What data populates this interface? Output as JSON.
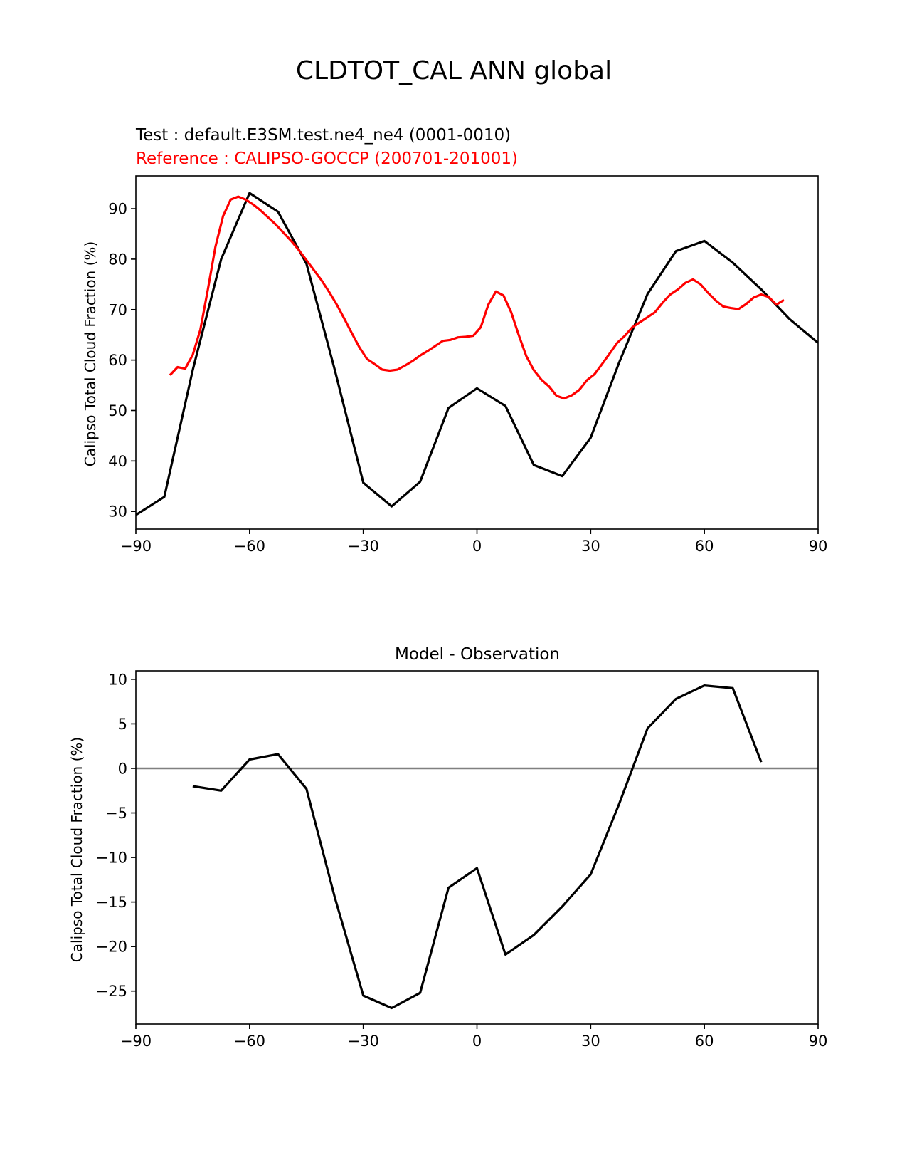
{
  "figure": {
    "title": "CLDTOT_CAL ANN global"
  },
  "chart_data": [
    {
      "type": "line",
      "subtitle_test": "Test : default.E3SM.test.ne4_ne4 (0001-0010)",
      "subtitle_reference": "Reference : CALIPSO-GOCCP (200701-201001)",
      "xlabel": "",
      "ylabel": "Calipso Total Cloud Fraction (%)",
      "xlim": [
        -90,
        90
      ],
      "ylim": [
        26.5,
        96.5
      ],
      "xticks": [
        -90,
        -60,
        -30,
        0,
        30,
        60,
        90
      ],
      "xtick_labels": [
        "−90",
        "−60",
        "−30",
        "0",
        "30",
        "60",
        "90"
      ],
      "yticks": [
        30,
        40,
        50,
        60,
        70,
        80,
        90
      ],
      "ytick_labels": [
        "30",
        "40",
        "50",
        "60",
        "70",
        "80",
        "90"
      ],
      "grid": false,
      "series": [
        {
          "name": "Test",
          "color": "#000000",
          "x": [
            -90,
            -82.5,
            -75,
            -67.5,
            -60,
            -52.5,
            -45,
            -37.5,
            -30,
            -22.5,
            -15,
            -7.5,
            0,
            7.5,
            15,
            22.5,
            30,
            37.5,
            45,
            52.5,
            60,
            67.5,
            75,
            82.5,
            90
          ],
          "y": [
            29.3,
            32.9,
            58.0,
            80.0,
            93.1,
            89.4,
            79.1,
            58.0,
            35.7,
            31.0,
            35.9,
            50.5,
            54.4,
            50.9,
            39.2,
            37.0,
            44.6,
            59.5,
            73.1,
            81.6,
            83.6,
            79.3,
            74.0,
            68.1,
            63.4
          ]
        },
        {
          "name": "Reference",
          "color": "#ff0000",
          "x": [
            -81,
            -79,
            -77,
            -75,
            -73,
            -71,
            -69,
            -67,
            -65,
            -63,
            -61,
            -59,
            -57,
            -55,
            -53,
            -51,
            -49,
            -47,
            -45,
            -43,
            -41,
            -39,
            -37,
            -35,
            -33,
            -31,
            -29,
            -27,
            -25,
            -23,
            -21,
            -19,
            -17,
            -15,
            -13,
            -11,
            -9,
            -7,
            -5,
            -3,
            -1,
            1,
            3,
            5,
            7,
            9,
            11,
            13,
            15,
            17,
            19,
            21,
            23,
            25,
            27,
            29,
            31,
            33,
            35,
            37,
            39,
            41,
            43,
            45,
            47,
            49,
            51,
            53,
            55,
            57,
            59,
            61,
            63,
            65,
            67,
            69,
            71,
            73,
            75,
            77,
            79,
            81
          ],
          "y": [
            57.0,
            58.6,
            58.3,
            61.0,
            66.0,
            74.0,
            82.5,
            88.5,
            91.8,
            92.4,
            91.8,
            90.8,
            89.6,
            88.2,
            86.8,
            85.2,
            83.6,
            81.8,
            79.8,
            77.8,
            75.8,
            73.5,
            71.0,
            68.2,
            65.3,
            62.5,
            60.2,
            59.2,
            58.1,
            57.9,
            58.1,
            58.9,
            59.8,
            60.9,
            61.8,
            62.8,
            63.8,
            64.0,
            64.5,
            64.6,
            64.8,
            66.5,
            71.0,
            73.6,
            72.8,
            69.5,
            65.0,
            60.8,
            58.0,
            56.1,
            54.8,
            52.9,
            52.4,
            53.0,
            54.1,
            56.0,
            57.2,
            59.2,
            61.3,
            63.4,
            64.8,
            66.5,
            67.5,
            68.5,
            69.5,
            71.4,
            73.0,
            74.0,
            75.3,
            76.0,
            75.0,
            73.3,
            71.8,
            70.6,
            70.3,
            70.1,
            71.1,
            72.4,
            73.0,
            72.5,
            71.0,
            71.9
          ]
        }
      ]
    },
    {
      "type": "line",
      "title": "Model - Observation",
      "xlabel": "",
      "ylabel": "Calipso Total Cloud Fraction (%)",
      "xlim": [
        -90,
        90
      ],
      "ylim": [
        -28.7,
        10.95
      ],
      "xticks": [
        -90,
        -60,
        -30,
        0,
        30,
        60,
        90
      ],
      "xtick_labels": [
        "−90",
        "−60",
        "−30",
        "0",
        "30",
        "60",
        "90"
      ],
      "yticks": [
        -25,
        -20,
        -15,
        -10,
        -5,
        0,
        5,
        10
      ],
      "ytick_labels": [
        "−25",
        "−20",
        "−15",
        "−10",
        "−5",
        "0",
        "5",
        "10"
      ],
      "grid": false,
      "zero_line_color": "#808080",
      "series": [
        {
          "name": "Model - Observation",
          "color": "#000000",
          "x": [
            -75,
            -67.5,
            -60,
            -52.5,
            -45,
            -37.5,
            -30,
            -22.5,
            -15,
            -7.5,
            0,
            7.5,
            15,
            22.5,
            30,
            37.5,
            45,
            52.5,
            60,
            67.5,
            75
          ],
          "y": [
            -2.0,
            -2.5,
            1.0,
            1.6,
            -2.3,
            -14.5,
            -25.5,
            -26.9,
            -25.2,
            -13.4,
            -11.2,
            -20.9,
            -18.7,
            -15.5,
            -11.9,
            -4.0,
            4.5,
            7.8,
            9.3,
            9.0,
            0.7
          ]
        }
      ]
    }
  ]
}
